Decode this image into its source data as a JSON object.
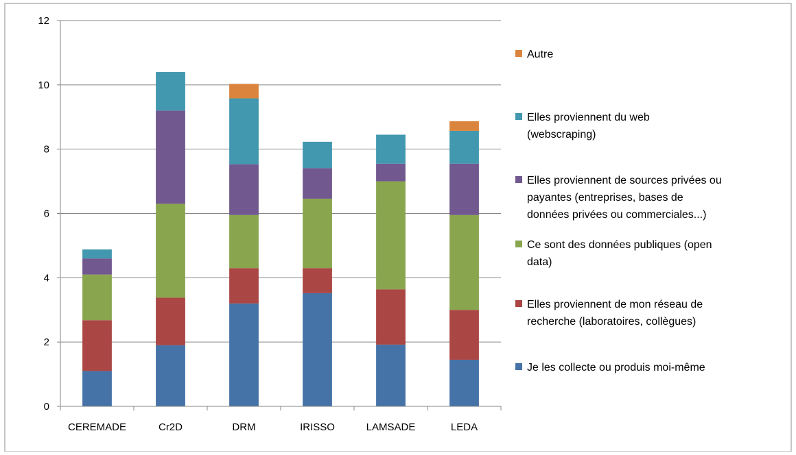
{
  "chart_data": {
    "type": "bar",
    "stacked": true,
    "title": "",
    "xlabel": "",
    "ylabel": "",
    "categories": [
      "CEREMADE",
      "Cr2D",
      "DRM",
      "IRISSO",
      "LAMSADE",
      "LEDA"
    ],
    "ylim": [
      0,
      12
    ],
    "yticks": [
      0,
      2,
      4,
      6,
      8,
      10,
      12
    ],
    "grid": true,
    "legend_position": "right",
    "series": [
      {
        "name": "Je les collecte ou produis moi-même",
        "color": "#4572A7",
        "values": [
          1.1,
          1.9,
          3.2,
          3.52,
          1.92,
          1.45
        ]
      },
      {
        "name": "Elles proviennent de mon réseau de recherche (laboratoires, collègues)",
        "color": "#AA4643",
        "values": [
          1.58,
          1.48,
          1.1,
          0.78,
          1.72,
          1.55
        ]
      },
      {
        "name": "Ce sont des données publiques (open data)",
        "color": "#89A54E",
        "values": [
          1.42,
          2.92,
          1.65,
          2.16,
          3.36,
          2.95
        ]
      },
      {
        "name": "Elles proviennent de sources privées ou payantes (entreprises, bases de données privées ou commerciales...)",
        "color": "#71588F",
        "values": [
          0.5,
          2.9,
          1.58,
          0.95,
          0.55,
          1.6
        ]
      },
      {
        "name": "Elles proviennent du web (webscraping)",
        "color": "#4198AF",
        "values": [
          0.28,
          1.2,
          2.05,
          0.82,
          0.9,
          1.02
        ]
      },
      {
        "name": "Autre",
        "color": "#DB843D",
        "values": [
          0,
          0,
          0.45,
          0,
          0,
          0.3
        ]
      }
    ]
  }
}
